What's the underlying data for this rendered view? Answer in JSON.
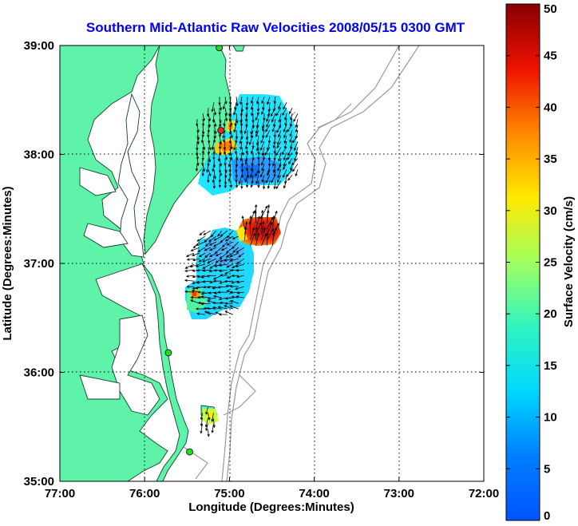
{
  "figure": {
    "title": "Southern Mid-Atlantic Raw Velocities 2008/05/15 0300 GMT",
    "xlabel": "Longitude (Degrees:Minutes)",
    "ylabel": "Latitude (Degrees:Minutes)",
    "colorbar_label": "Surface Velocity (cm/s)"
  },
  "map": {
    "lon_range": [
      -77,
      -72
    ],
    "lat_range": [
      35,
      39
    ],
    "x_ticks": [
      {
        "value": -77,
        "label": "77:00"
      },
      {
        "value": -76,
        "label": "76:00"
      },
      {
        "value": -75,
        "label": "75:00"
      },
      {
        "value": -74,
        "label": "74:00"
      },
      {
        "value": -73,
        "label": "73:00"
      },
      {
        "value": -72,
        "label": "72:00"
      }
    ],
    "y_ticks": [
      {
        "value": 39,
        "label": "39:00"
      },
      {
        "value": 38,
        "label": "38:00"
      },
      {
        "value": 37,
        "label": "37:00"
      },
      {
        "value": 36,
        "label": "36:00"
      },
      {
        "value": 35,
        "label": "35:00"
      }
    ],
    "grid": "dotted",
    "land_color": "#5ef3a8",
    "water_color": "#ffffff",
    "bathymetry_color": "#999999",
    "vector_color": "#000000"
  },
  "colorbar": {
    "range": [
      0,
      50
    ],
    "ticks": [
      "0",
      "5",
      "10",
      "15",
      "20",
      "25",
      "30",
      "35",
      "40",
      "45",
      "50"
    ]
  },
  "stations": [
    {
      "lon": -75.12,
      "lat": 38.98,
      "color": "#22dd22"
    },
    {
      "lon": -75.1,
      "lat": 38.22,
      "color": "#ee2222"
    },
    {
      "lon": -75.72,
      "lat": 36.18,
      "color": "#22dd22"
    },
    {
      "lon": -75.47,
      "lat": 35.27,
      "color": "#22dd22"
    }
  ],
  "velocity_fields": [
    {
      "name": "north",
      "lon": [
        -75.38,
        -74.15
      ],
      "lat": [
        37.72,
        38.53
      ],
      "speed_cms": 10
    },
    {
      "name": "chesapeake-mouth",
      "lon": [
        -75.42,
        -74.82
      ],
      "lat": [
        36.53,
        37.3
      ],
      "speed_cms": 9
    },
    {
      "name": "offshore-hotspot",
      "lon": [
        -74.82,
        -74.43
      ],
      "lat": [
        37.15,
        37.42
      ],
      "speed_cms": 45
    },
    {
      "name": "hatteras",
      "lon": [
        -75.32,
        -75.18
      ],
      "lat": [
        35.47,
        35.68
      ],
      "speed_cms": 20
    }
  ]
}
